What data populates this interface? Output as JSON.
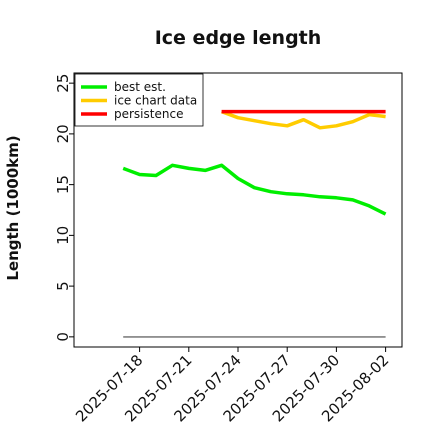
{
  "chart_data": {
    "type": "line",
    "title": "Ice edge length",
    "xlabel": "",
    "ylabel": "Length (1000km)",
    "x_ticks": [
      "2025-07-18",
      "2025-07-21",
      "2025-07-24",
      "2025-07-27",
      "2025-07-30",
      "2025-08-02"
    ],
    "xlim": [
      "2025-07-14",
      "2025-08-03"
    ],
    "ylim": [
      -1,
      26
    ],
    "y_ticks": [
      0,
      5,
      10,
      15,
      20,
      25
    ],
    "grid": false,
    "legend_position": "top-left",
    "series": [
      {
        "name": "best est.",
        "color": "#00ee00",
        "x": [
          "2025-07-17",
          "2025-07-18",
          "2025-07-19",
          "2025-07-20",
          "2025-07-21",
          "2025-07-22",
          "2025-07-23",
          "2025-07-24",
          "2025-07-25",
          "2025-07-26",
          "2025-07-27",
          "2025-07-28",
          "2025-07-29",
          "2025-07-30",
          "2025-07-31",
          "2025-08-01",
          "2025-08-02"
        ],
        "y": [
          16.6,
          16.0,
          15.9,
          16.9,
          16.6,
          16.4,
          16.9,
          15.6,
          14.7,
          14.3,
          14.1,
          14.0,
          13.8,
          13.7,
          13.5,
          12.9,
          12.1
        ]
      },
      {
        "name": "ice chart data",
        "color": "#ffcc00",
        "x": [
          "2025-07-23",
          "2025-07-24",
          "2025-07-25",
          "2025-07-26",
          "2025-07-27",
          "2025-07-28",
          "2025-07-29",
          "2025-07-30",
          "2025-07-31",
          "2025-08-01",
          "2025-08-02"
        ],
        "y": [
          22.2,
          21.6,
          21.3,
          21.0,
          20.8,
          21.4,
          20.6,
          20.8,
          21.2,
          21.9,
          21.7
        ]
      },
      {
        "name": "persistence",
        "color": "#ff0000",
        "x": [
          "2025-07-23",
          "2025-08-02"
        ],
        "y": [
          22.2,
          22.2
        ]
      },
      {
        "name": "",
        "color": "#808080",
        "x": [
          "2025-07-17",
          "2025-08-02"
        ],
        "y": [
          0,
          0
        ]
      }
    ]
  }
}
